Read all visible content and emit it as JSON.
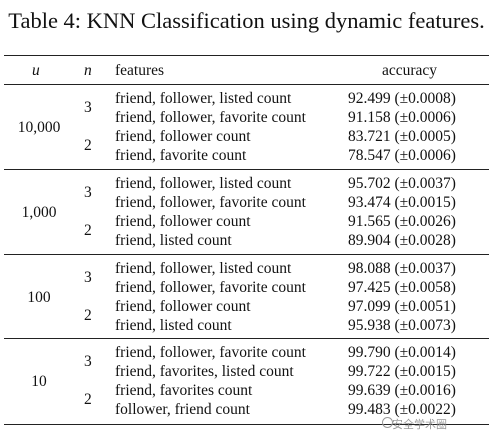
{
  "title": "Table 4: KNN Classification using dynamic features.",
  "headers": {
    "u": "u",
    "n": "n",
    "features": "features",
    "accuracy": "accuracy"
  },
  "groups": [
    {
      "u": "10,000",
      "rows": [
        {
          "n": "3",
          "features": "friend, follower, listed count",
          "accuracy": "92.499 (±0.0008)"
        },
        {
          "n": "",
          "features": "friend, follower, favorite count",
          "accuracy": "91.158 (±0.0006)"
        },
        {
          "n": "2",
          "features": "friend, follower count",
          "accuracy": "83.721 (±0.0005)"
        },
        {
          "n": "",
          "features": "friend, favorite count",
          "accuracy": "78.547 (±0.0006)"
        }
      ]
    },
    {
      "u": "1,000",
      "rows": [
        {
          "n": "3",
          "features": "friend, follower, listed count",
          "accuracy": "95.702 (±0.0037)"
        },
        {
          "n": "",
          "features": "friend, follower, favorite count",
          "accuracy": "93.474 (±0.0015)"
        },
        {
          "n": "2",
          "features": "friend, follower count",
          "accuracy": "91.565 (±0.0026)"
        },
        {
          "n": "",
          "features": "friend, listed count",
          "accuracy": "89.904 (±0.0028)"
        }
      ]
    },
    {
      "u": "100",
      "rows": [
        {
          "n": "3",
          "features": "friend, follower, listed count",
          "accuracy": "98.088 (±0.0037)"
        },
        {
          "n": "",
          "features": "friend, follower, favorite count",
          "accuracy": "97.425 (±0.0058)"
        },
        {
          "n": "2",
          "features": "friend, follower count",
          "accuracy": "97.099 (±0.0051)"
        },
        {
          "n": "",
          "features": "friend, listed count",
          "accuracy": "95.938 (±0.0073)"
        }
      ]
    },
    {
      "u": "10",
      "rows": [
        {
          "n": "3",
          "features": "friend, follower, favorite count",
          "accuracy": "99.790 (±0.0014)"
        },
        {
          "n": "",
          "features": "friend, favorites, listed count",
          "accuracy": "99.722 (±0.0015)"
        },
        {
          "n": "2",
          "features": "friend, favorites count",
          "accuracy": "99.639 (±0.0016)"
        },
        {
          "n": "",
          "features": "follower, friend count",
          "accuracy": "99.483 (±0.0022)"
        }
      ]
    }
  ],
  "watermark": "安全学术圈"
}
